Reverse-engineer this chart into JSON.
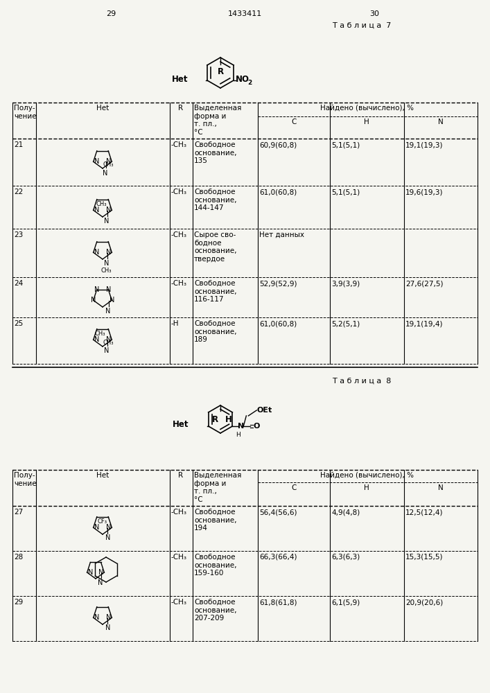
{
  "page_numbers": [
    "29",
    "1433411",
    "30"
  ],
  "table7_title": "Т а б л и ц а  7",
  "table8_title": "Т а б л и ц а  8",
  "bg_color": "#f5f5f0",
  "header_row1": [
    "Полу-\nчение",
    "Het",
    "R",
    "Выделенная\nформа и\nт. пл.,\n°C",
    "Найдено (вычислено), %",
    "",
    ""
  ],
  "header_row2": [
    "",
    "",
    "",
    "",
    "C",
    "H",
    "N"
  ],
  "table7_rows": [
    {
      "num": "21",
      "R": "-CH₃",
      "form": "Свободное\nоснование,\n135",
      "C": "60,9(60,8)",
      "H": "5,1(5,1)",
      "N": "19,1(19,3)"
    },
    {
      "num": "22",
      "R": "-CH₃",
      "form": "Свободное\nоснование,\n144-147",
      "C": "61,0(60,8)",
      "H": "5,1(5,1)",
      "N": "19,6(19,3)"
    },
    {
      "num": "23",
      "R": "-CH₃",
      "form": "Сырое сво-\nбодное\nоснование,\nтвердое",
      "C": "Нет данных",
      "H": "",
      "N": ""
    },
    {
      "num": "24",
      "R": "-CH₃",
      "form": "Свободное\nоснование,\n116-117",
      "C": "52,9(52,9)",
      "H": "3,9(3,9)",
      "N": "27,6(27,5)"
    },
    {
      "num": "25",
      "R": "-H",
      "form": "Свободное\nоснование,\n189",
      "C": "61,0(60,8)",
      "H": "5,2(5,1)",
      "N": "19,1(19,4)"
    }
  ],
  "table8_rows": [
    {
      "num": "27",
      "R": "-CH₃",
      "form": "Свободное\nоснование,\n194",
      "C": "56,4(56,6)",
      "H": "4,9(4,8)",
      "N": "12,5(12,4)"
    },
    {
      "num": "28",
      "R": "-CH₃",
      "form": "Свободное\nоснование,\n159-160",
      "C": "66,3(66,4)",
      "H": "6,3(6,3)",
      "N": "15,3(15,5)"
    },
    {
      "num": "29",
      "R": "-CH₃",
      "form": "Свободное\nоснование,\n207-209",
      "C": "61,8(61,8)",
      "H": "6,1(5,9)",
      "N": "20,9(20,6)"
    }
  ]
}
